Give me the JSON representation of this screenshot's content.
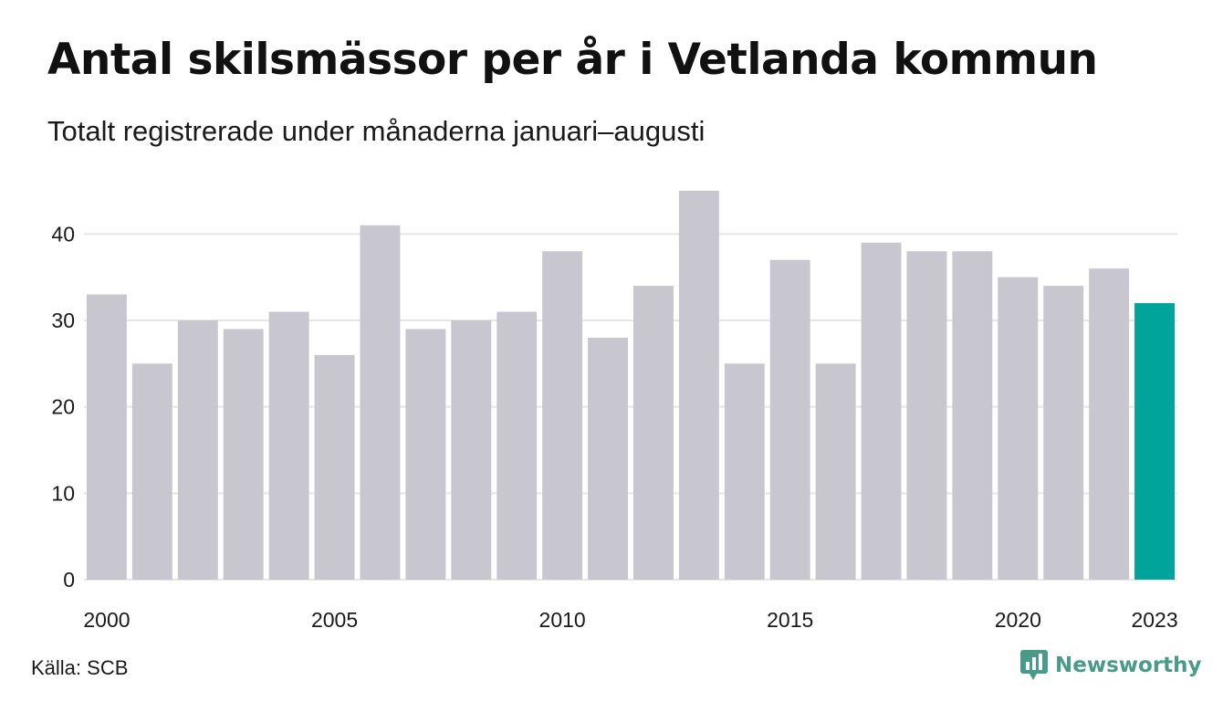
{
  "title": "Antal skilsmässor per år i Vetlanda kommun",
  "subtitle": "Totalt registrerade under månaderna januari–augusti",
  "source": "Källa: SCB",
  "brand": {
    "name": "Newsworthy",
    "icon": "newsworthy-logo-icon"
  },
  "colors": {
    "bar": "#c8c7cf",
    "highlight": "#00a49a",
    "grid": "#e6e6e6",
    "text": "#1a1a1a",
    "brand": "#4a9a8a"
  },
  "chart_data": {
    "type": "bar",
    "categories": [
      "2000",
      "2001",
      "2002",
      "2003",
      "2004",
      "2005",
      "2006",
      "2007",
      "2008",
      "2009",
      "2010",
      "2011",
      "2012",
      "2013",
      "2014",
      "2015",
      "2016",
      "2017",
      "2018",
      "2019",
      "2020",
      "2021",
      "2022",
      "2023"
    ],
    "values": [
      33,
      25,
      30,
      29,
      31,
      26,
      41,
      29,
      30,
      31,
      38,
      28,
      34,
      45,
      25,
      37,
      25,
      39,
      38,
      38,
      35,
      34,
      36,
      32
    ],
    "highlight_category": "2023",
    "x_tick_labels": [
      "2000",
      "2005",
      "2010",
      "2015",
      "2020",
      "2023"
    ],
    "y_ticks": [
      0,
      10,
      20,
      30,
      40
    ],
    "ylim": [
      0,
      45
    ],
    "grid": true,
    "xlabel": "",
    "ylabel": ""
  }
}
